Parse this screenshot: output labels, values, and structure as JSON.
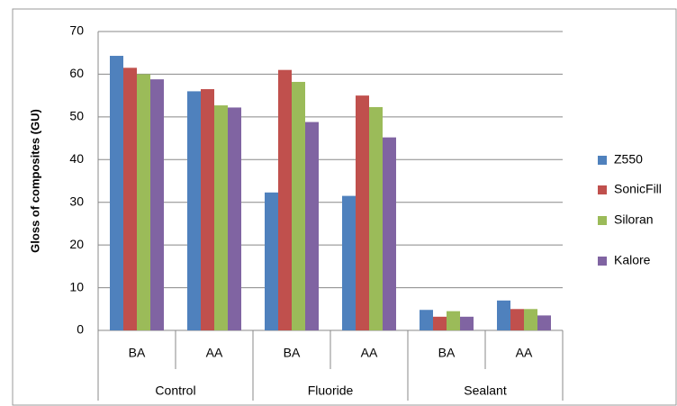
{
  "chart_data": {
    "type": "bar",
    "y_label": "Gloss of composites (GU)",
    "categories": [
      "BA",
      "AA",
      "BA",
      "AA",
      "BA",
      "AA"
    ],
    "groups": [
      "Control",
      "Fluoride",
      "Sealant"
    ],
    "series": [
      {
        "name": "Z550",
        "color": "#4f81bd",
        "values": [
          64.3,
          56,
          32.3,
          31.5,
          4.8,
          7
        ]
      },
      {
        "name": "SonicFill",
        "color": "#c0504d",
        "values": [
          61.5,
          56.5,
          61,
          55,
          3.2,
          5
        ]
      },
      {
        "name": "Siloran",
        "color": "#9bbb59",
        "values": [
          60,
          52.7,
          58.2,
          52.3,
          4.5,
          5
        ]
      },
      {
        "name": "Kalore",
        "color": "#8064a2",
        "values": [
          58.8,
          52.2,
          48.8,
          45.2,
          3.2,
          3.5
        ]
      }
    ],
    "ylim": [
      0,
      70
    ],
    "yticks": [
      0,
      10,
      20,
      30,
      40,
      50,
      60,
      70
    ],
    "grid": true,
    "legend": "right"
  }
}
